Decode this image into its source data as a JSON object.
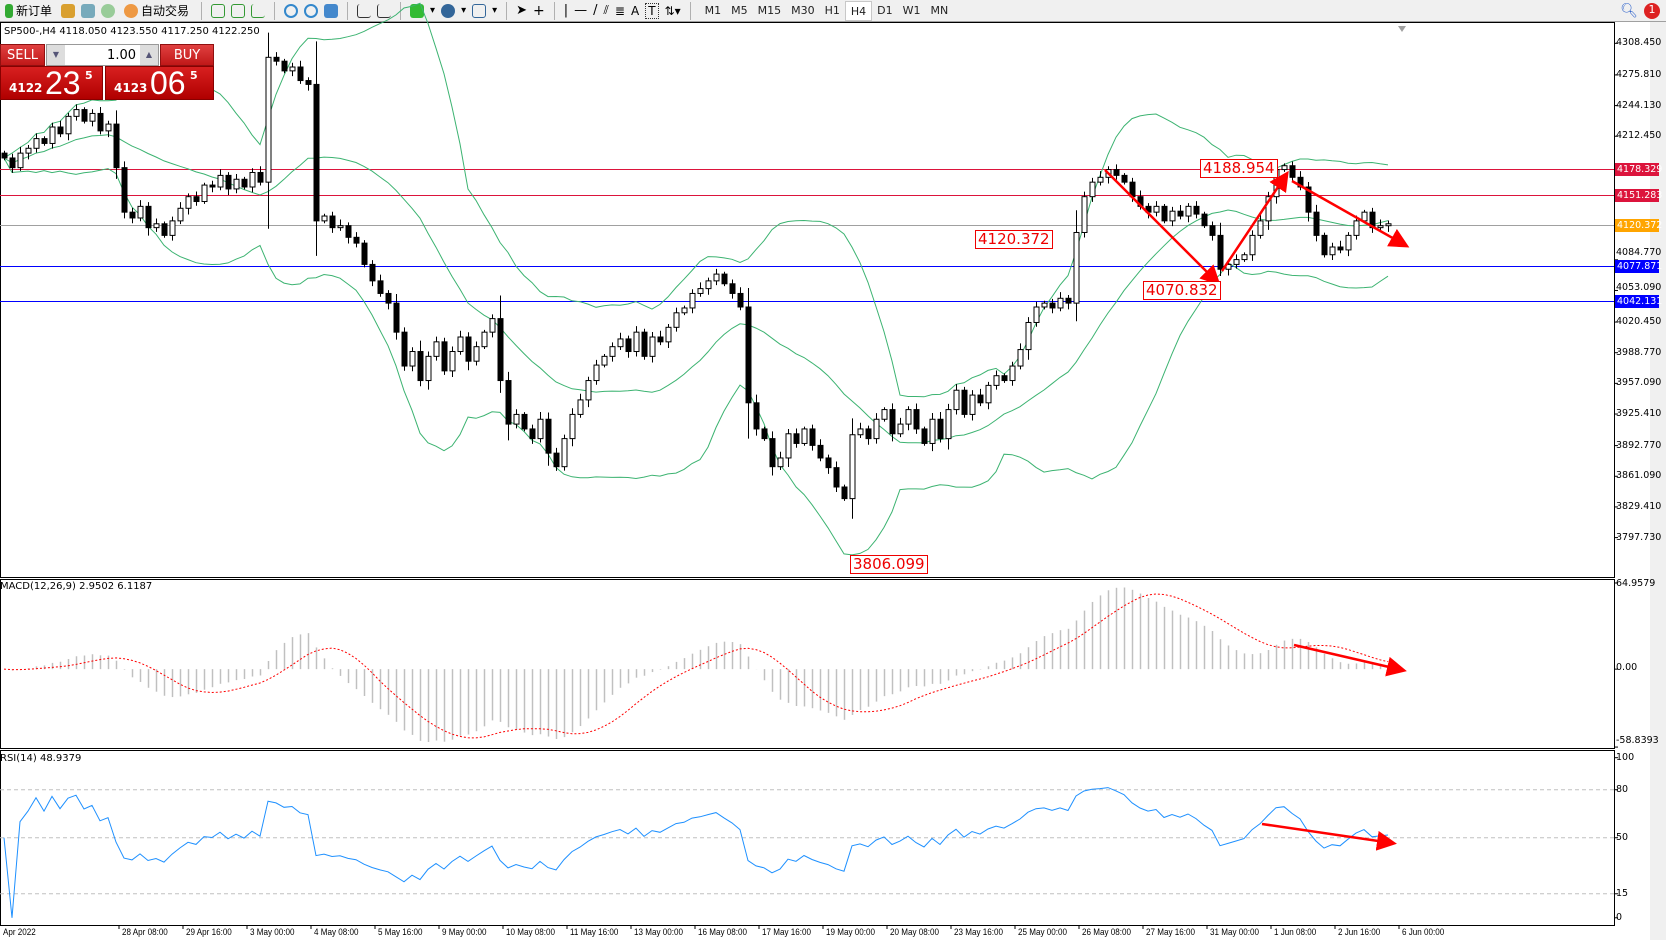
{
  "toolbar": {
    "new_order": "新订单",
    "auto_trading": "自动交易",
    "timeframes": [
      "M1",
      "M5",
      "M15",
      "M30",
      "H1",
      "H4",
      "D1",
      "W1",
      "MN"
    ],
    "active_timeframe": "H4",
    "text_tool": "A",
    "label_tool": "T",
    "notification_count": "1"
  },
  "chart": {
    "title": "SP500-,H4  4118.050 4123.550 4117.250 4122.250",
    "symbol": "SP500-",
    "timeframe": "H4",
    "price_axis": {
      "min": 3757,
      "max": 4330.5,
      "ticks": [
        "4308.450",
        "4275.810",
        "4244.130",
        "4212.450",
        "4084.770",
        "4053.090",
        "4020.450",
        "3988.770",
        "3957.090",
        "3925.410",
        "3892.770",
        "3861.090",
        "3829.410",
        "3797.730"
      ]
    },
    "levels": [
      {
        "value": "4178.329",
        "color": "#dc143c"
      },
      {
        "value": "4151.283",
        "color": "#dc143c"
      },
      {
        "value": "4120.372",
        "color": "#ffa500",
        "line": "#a0a0a0"
      },
      {
        "value": "4077.871",
        "color": "#0000ff"
      },
      {
        "value": "4042.131",
        "color": "#0000ff"
      }
    ],
    "annotations": [
      "4188.954",
      "4120.372",
      "4070.832",
      "3806.099"
    ],
    "bollinger_color": "#3cb371",
    "closes": [
      4190,
      4180,
      4195,
      4200,
      4210,
      4205,
      4222,
      4215,
      4233,
      4240,
      4228,
      4236,
      4218,
      4225,
      4180,
      4134,
      4128,
      4140,
      4118,
      4122,
      4110,
      4125,
      4138,
      4150,
      4145,
      4162,
      4160,
      4172,
      4158,
      4168,
      4160,
      4175,
      4165,
      4294,
      4290,
      4280,
      4284,
      4270,
      4266,
      4125,
      4130,
      4118,
      4120,
      4108,
      4102,
      4080,
      4063,
      4050,
      4040,
      4010,
      3975,
      3990,
      3960,
      3985,
      4000,
      3970,
      3990,
      4005,
      3980,
      3995,
      4010,
      4024,
      3960,
      3915,
      3925,
      3910,
      3900,
      3920,
      3885,
      3871,
      3900,
      3925,
      3940,
      3960,
      3976,
      3985,
      3995,
      4003,
      3990,
      4010,
      3985,
      4005,
      4000,
      4015,
      4030,
      4035,
      4050,
      4055,
      4063,
      4070,
      4060,
      4050,
      4036,
      3937,
      3910,
      3900,
      3871,
      3880,
      3905,
      3895,
      3910,
      3893,
      3880,
      3870,
      3850,
      3838,
      3904,
      3910,
      3900,
      3920,
      3930,
      3905,
      3915,
      3930,
      3910,
      3895,
      3920,
      3900,
      3930,
      3950,
      3925,
      3945,
      3937,
      3955,
      3965,
      3960,
      3975,
      3992,
      4020,
      4036,
      4040,
      4035,
      4045,
      4040,
      4113,
      4150,
      4165,
      4170,
      4178,
      4172,
      4165,
      4150,
      4140,
      4134,
      4140,
      4125,
      4135,
      4130,
      4140,
      4132,
      4120,
      4110,
      4075,
      4080,
      4085,
      4090,
      4110,
      4125,
      4150,
      4178,
      4182,
      4170,
      4160,
      4134,
      4110,
      4090,
      4098,
      4095,
      4110,
      4125,
      4134,
      4118,
      4120,
      4122
    ],
    "time_labels": [
      "Apr 2022",
      "28 Apr 08:00",
      "29 Apr 16:00",
      "3 May 00:00",
      "4 May 08:00",
      "5 May 16:00",
      "9 May 00:00",
      "10 May 08:00",
      "11 May 16:00",
      "13 May 00:00",
      "16 May 08:00",
      "17 May 16:00",
      "19 May 00:00",
      "20 May 08:00",
      "23 May 16:00",
      "25 May 00:00",
      "26 May 08:00",
      "27 May 16:00",
      "31 May 00:00",
      "1 Jun 08:00",
      "2 Jun 16:00",
      "6 Jun 00:00"
    ]
  },
  "one_click": {
    "sell_label": "SELL",
    "buy_label": "BUY",
    "lot": "1.00",
    "sell_price": {
      "small": "4122",
      "big": "23",
      "tiny": "5"
    },
    "buy_price": {
      "small": "4123",
      "big": "06",
      "tiny": "5"
    }
  },
  "macd": {
    "title": "MACD(12,26,9) 2.9502 6.1187",
    "axis": {
      "max_label": "64.9579",
      "zero_label": "0.00",
      "min_label": "-58.8393",
      "ylim": [
        -59.5,
        68
      ]
    },
    "histogram_color": "#c0c0c0",
    "signal_color": "#ff0000"
  },
  "rsi": {
    "title": "RSI(14) 48.9379",
    "axis": {
      "labels": [
        "100",
        "80",
        "50",
        "15",
        "0"
      ],
      "ylim": [
        -4.5,
        104.8
      ]
    },
    "line_color": "#1e90ff"
  }
}
